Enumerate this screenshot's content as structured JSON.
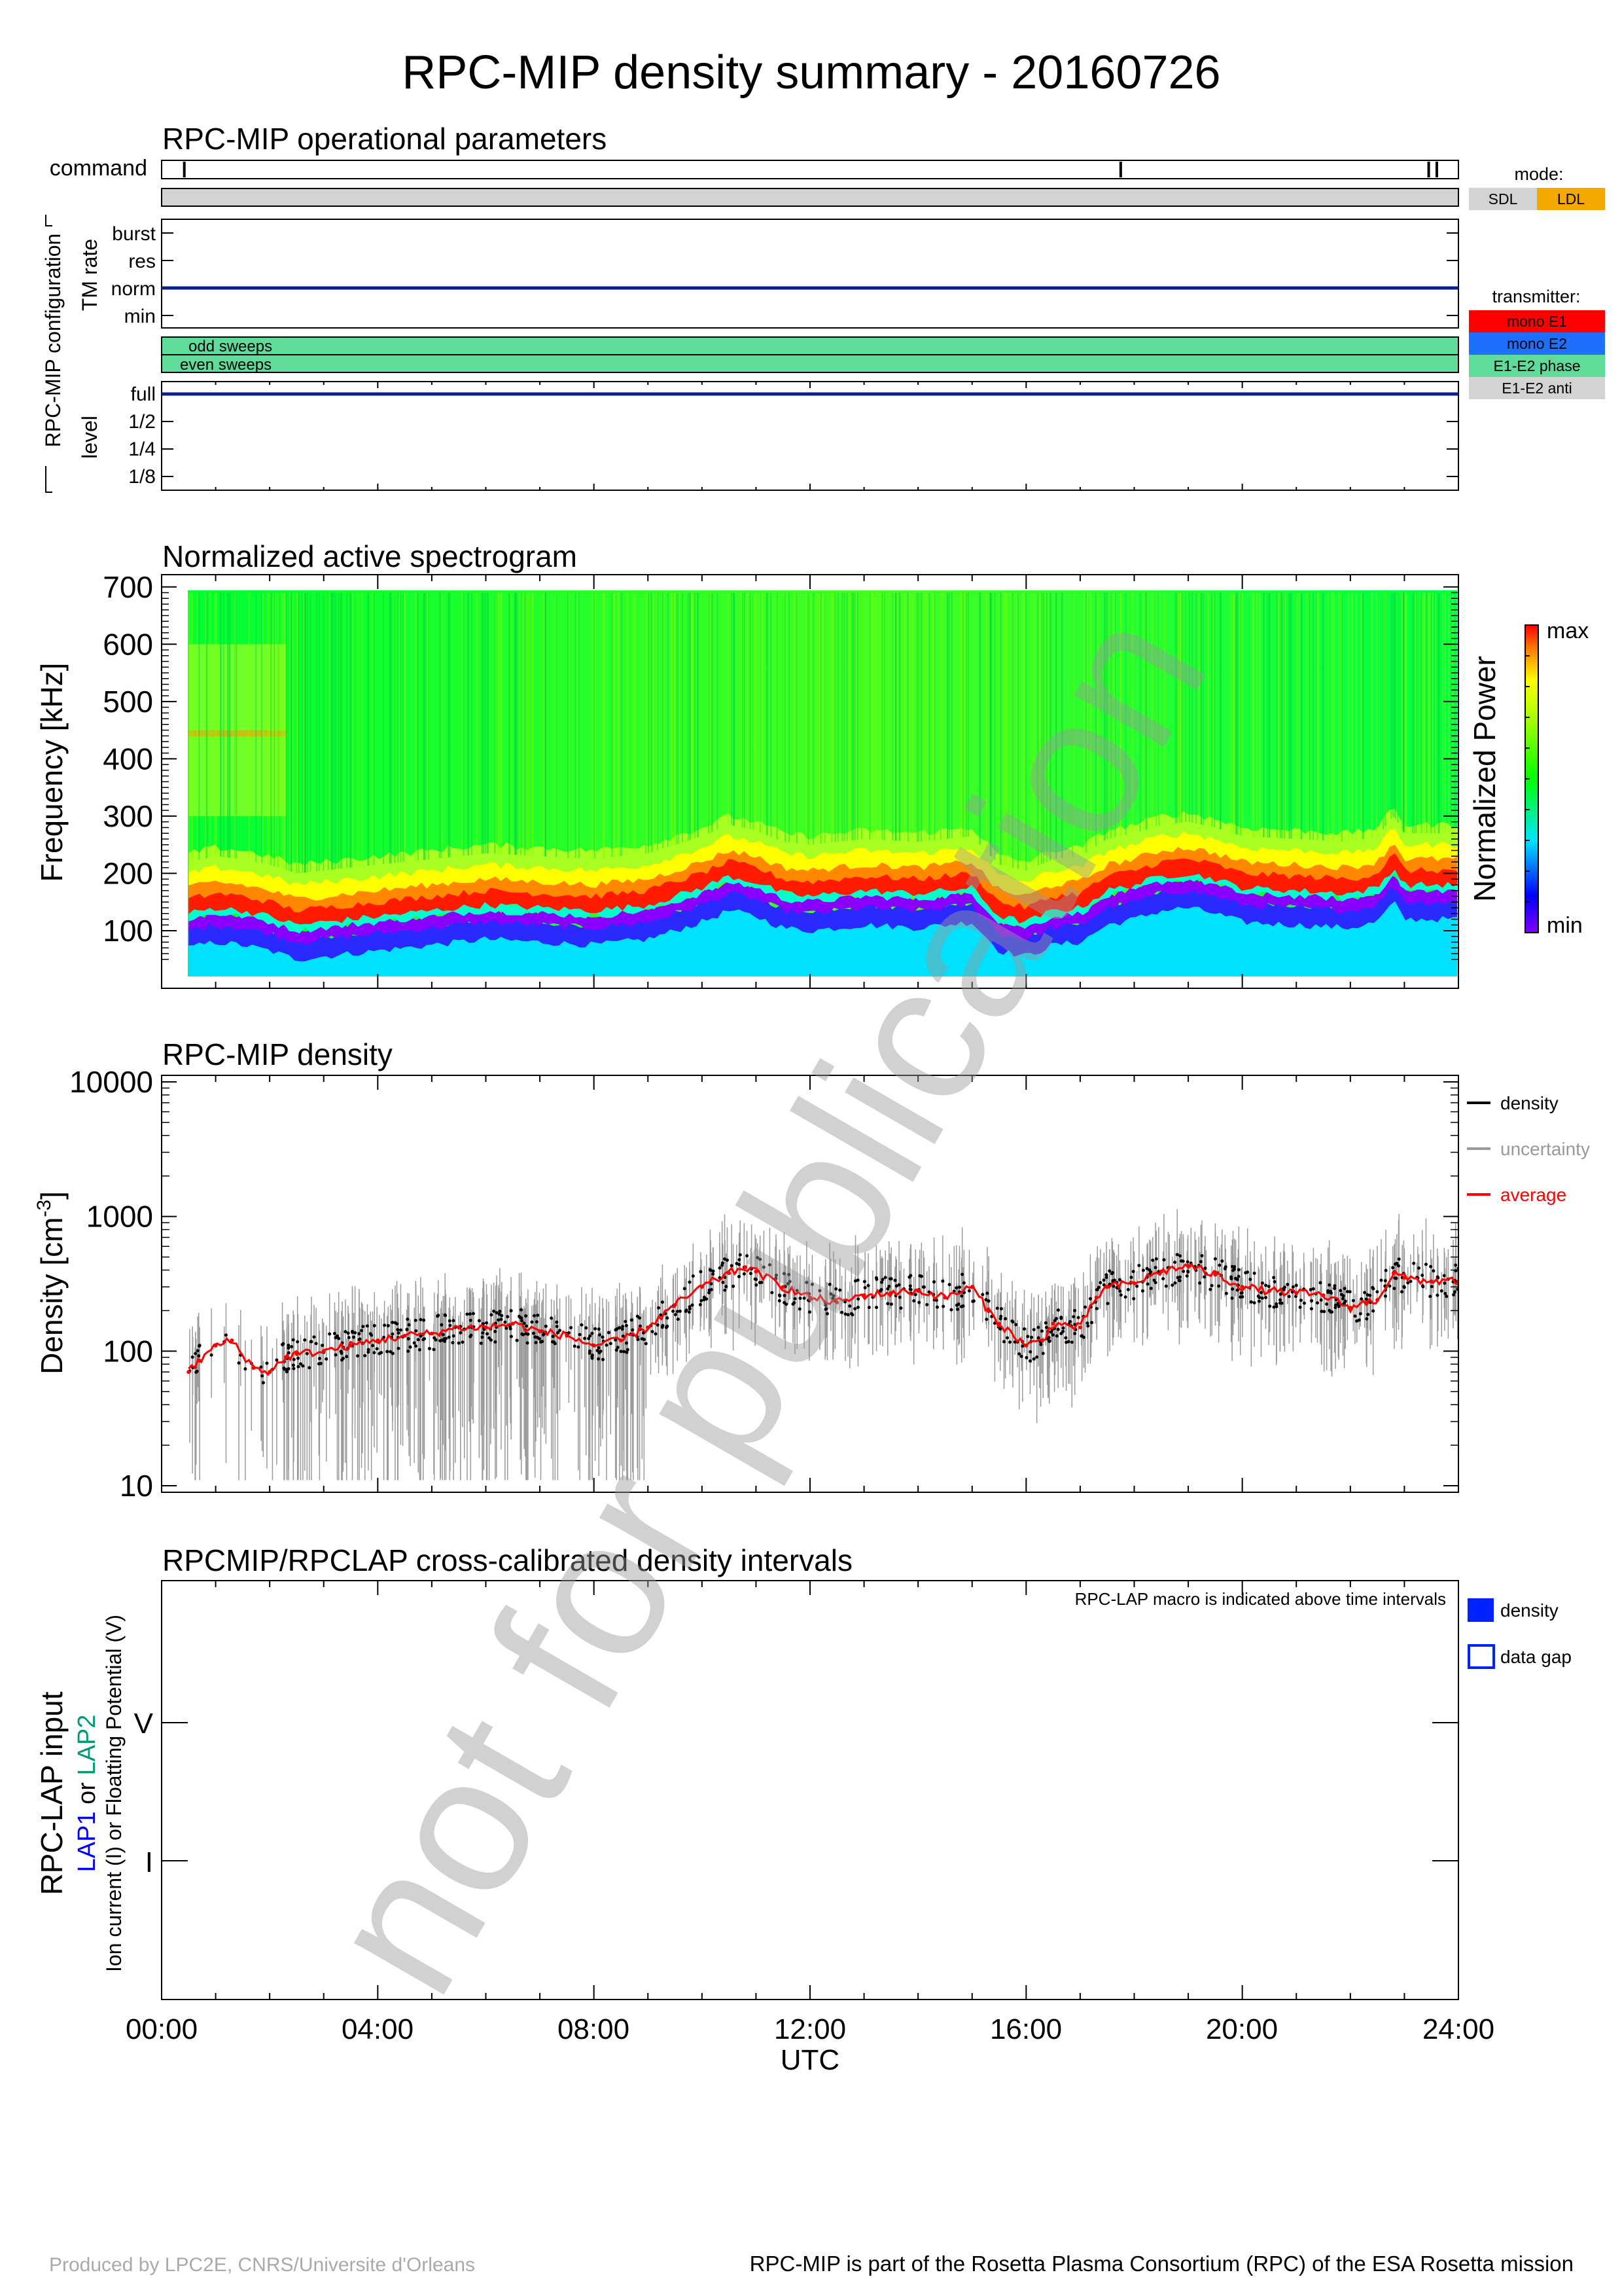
{
  "page": {
    "title": "RPC-MIP density summary - 20160726",
    "watermark": "not for publication",
    "footer_left": "Produced by LPC2E, CNRS/Universite d'Orleans",
    "footer_right": "RPC-MIP is part of the Rosetta Plasma Consortium (RPC) of the ESA Rosetta mission"
  },
  "ops_panel": {
    "title": "RPC-MIP operational parameters",
    "command_label": "command",
    "config_label": "RPC-MIP configuration",
    "tm_rate_label": "TM rate",
    "tm_levels": [
      "burst",
      "res",
      "norm",
      "min"
    ],
    "tm_rate_value": "norm",
    "sweep_labels": [
      "odd sweeps",
      "even sweeps"
    ],
    "level_label": "level",
    "level_values": [
      "full",
      "1/2",
      "1/4",
      "1/8"
    ],
    "level_value": "full",
    "command_times_h": [
      0.42,
      17.75,
      23.45,
      23.6
    ],
    "mode_legend": {
      "title": "mode:",
      "items": [
        {
          "label": "SDL",
          "color": "#d3d3d3"
        },
        {
          "label": "LDL",
          "color": "#f5a800"
        }
      ]
    },
    "transmitter_legend": {
      "title": "transmitter:",
      "items": [
        {
          "label": "mono E1",
          "color": "#ff0000"
        },
        {
          "label": "mono E2",
          "color": "#1f6fff"
        },
        {
          "label": "E1-E2 phase",
          "color": "#5fdc9a"
        },
        {
          "label": "E1-E2 anti",
          "color": "#d3d3d3"
        }
      ]
    },
    "mode_bar_color": "#d3d3d3",
    "sweep_color": "#5fdc9a"
  },
  "spectrogram_panel": {
    "title": "Normalized active spectrogram",
    "ylabel": "Frequency [kHz]",
    "yticks": [
      100,
      200,
      300,
      400,
      500,
      600,
      700
    ],
    "colorbar_label": "Normalized Power",
    "colorbar_max": "max",
    "colorbar_min": "min"
  },
  "density_panel": {
    "title": "RPC-MIP density",
    "ylabel_main": "Density [cm",
    "ylabel_sup": "-3",
    "ylabel_end": "]",
    "yticks": [
      "10000",
      "1000",
      "100",
      "10"
    ],
    "legend": [
      {
        "label": "density",
        "color": "#000000"
      },
      {
        "label": "uncertainty",
        "color": "#999999"
      },
      {
        "label": "average",
        "color": "#ff0000"
      }
    ]
  },
  "lap_panel": {
    "title": "RPCMIP/RPCLAP cross-calibrated density intervals",
    "note": "RPC-LAP macro is indicated above time intervals",
    "ylabel1": "RPC-LAP input",
    "ylabel2_a": "LAP1",
    "ylabel2_b": " or ",
    "ylabel2_c": "LAP2",
    "ylabel3": "Ion current (I) or Floatting Potential (V)",
    "yticks": [
      "V",
      "I"
    ],
    "legend": [
      {
        "label": "density"
      },
      {
        "label": "data gap"
      }
    ],
    "lap1_color": "#0000ff",
    "lap2_color": "#009977"
  },
  "x_axis": {
    "ticks": [
      "00:00",
      "04:00",
      "08:00",
      "12:00",
      "16:00",
      "20:00",
      "24:00"
    ],
    "label": "UTC"
  },
  "chart_data": [
    {
      "type": "heatmap",
      "title": "Normalized active spectrogram",
      "xlabel": "",
      "ylabel": "Frequency [kHz]",
      "xlim": [
        0,
        24
      ],
      "ylim": [
        20,
        710
      ],
      "plasma_line_khz": {
        "t": [
          0.5,
          1,
          1.5,
          2,
          2.5,
          3,
          4,
          5,
          6,
          7,
          8,
          9,
          10,
          10.5,
          11,
          11.5,
          12,
          13,
          14,
          15,
          15.5,
          16,
          16.5,
          17,
          17.5,
          18,
          18.5,
          19,
          19.5,
          20,
          21,
          22,
          22.5,
          22.8,
          23,
          23.5,
          24
        ],
        "f": [
          130,
          140,
          135,
          125,
          110,
          115,
          125,
          135,
          145,
          140,
          135,
          145,
          175,
          195,
          185,
          165,
          160,
          170,
          165,
          175,
          125,
          115,
          135,
          140,
          170,
          180,
          195,
          200,
          190,
          175,
          170,
          165,
          175,
          210,
          180,
          180,
          180
        ]
      },
      "colorscale": "rainbow (min → max)"
    },
    {
      "type": "scatter",
      "title": "RPC-MIP density",
      "xlabel": "",
      "ylabel": "Density [cm-3]",
      "xlim": [
        0,
        24
      ],
      "ylim": [
        10,
        10000
      ],
      "yscale": "log",
      "series": [
        {
          "name": "average",
          "x": [
            0.5,
            0.7,
            1.0,
            1.3,
            1.7,
            2.0,
            2.3,
            2.5,
            3.0,
            3.5,
            4.0,
            4.5,
            5.0,
            5.5,
            6.0,
            6.5,
            7.0,
            7.5,
            8.0,
            8.5,
            9.0,
            9.5,
            10.0,
            10.5,
            10.8,
            11.0,
            11.5,
            12.0,
            12.5,
            13.0,
            13.5,
            14.0,
            14.5,
            15.0,
            15.3,
            15.5,
            16.0,
            16.3,
            16.5,
            17.0,
            17.3,
            17.5,
            18.0,
            18.5,
            19.0,
            19.5,
            20.0,
            20.5,
            21.0,
            21.5,
            22.0,
            22.3,
            22.5,
            22.8,
            23.0,
            23.5,
            24.0
          ],
          "y": [
            70,
            85,
            110,
            120,
            75,
            70,
            90,
            95,
            100,
            110,
            120,
            130,
            135,
            150,
            150,
            160,
            140,
            130,
            110,
            120,
            150,
            220,
            300,
            380,
            420,
            390,
            300,
            250,
            230,
            260,
            270,
            280,
            250,
            300,
            200,
            160,
            110,
            120,
            160,
            150,
            250,
            300,
            320,
            390,
            430,
            370,
            300,
            280,
            270,
            260,
            210,
            230,
            240,
            380,
            350,
            330,
            330
          ]
        }
      ]
    }
  ]
}
